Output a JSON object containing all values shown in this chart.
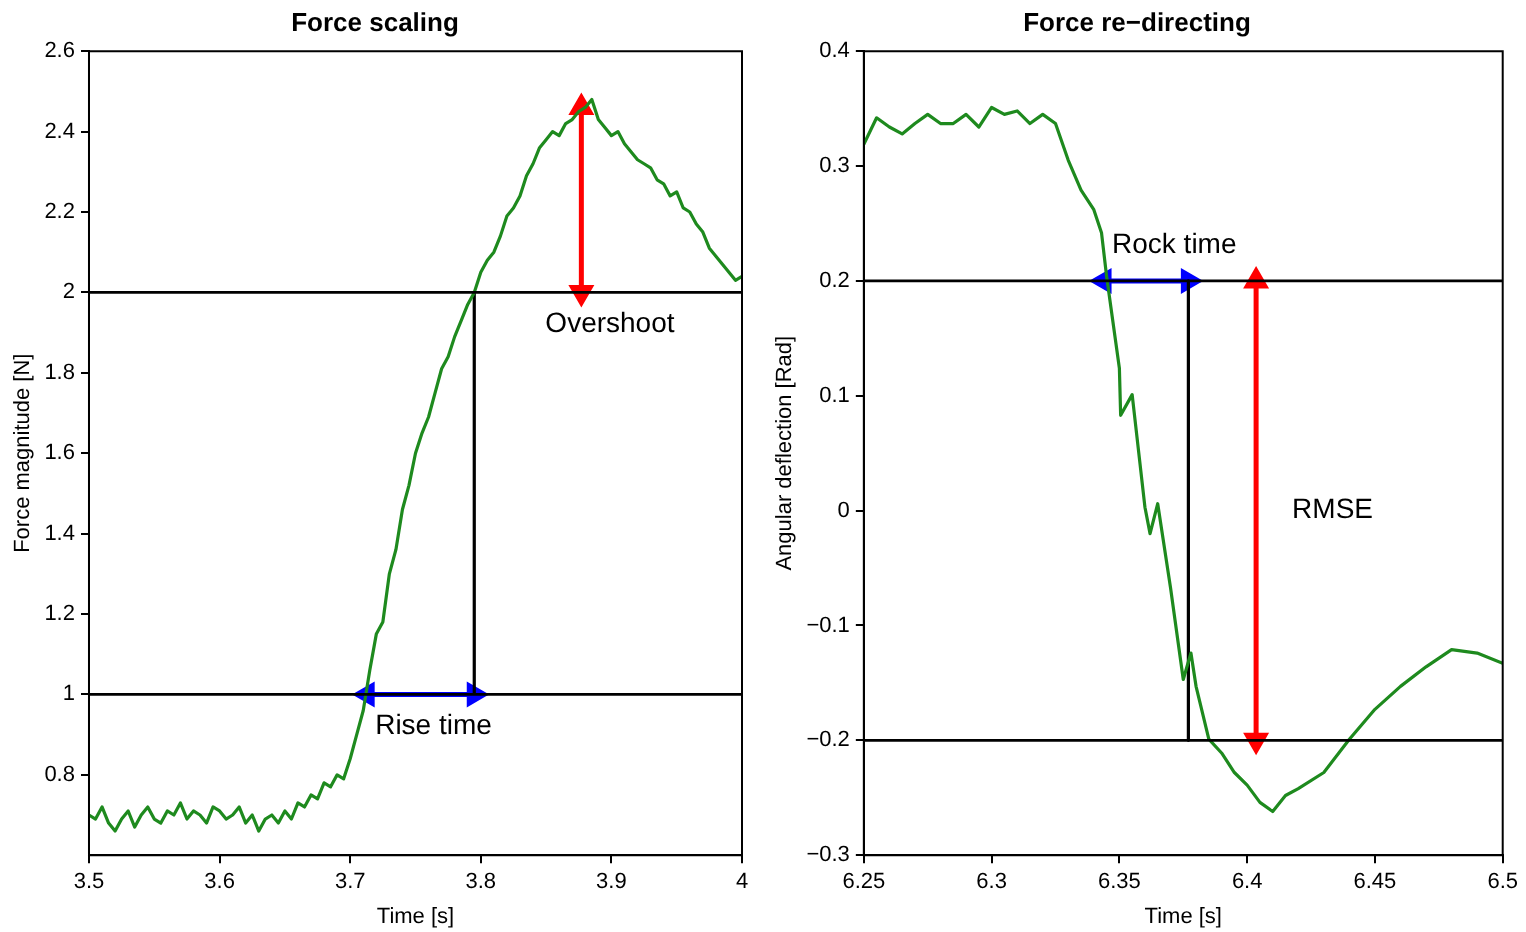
{
  "chart_data": [
    {
      "type": "line",
      "title": "Force scaling",
      "xlabel": "Time [s]",
      "ylabel": "Force magnitude [N]",
      "xlim": [
        3.5,
        4
      ],
      "xticks": [
        3.5,
        3.6,
        3.7,
        3.8,
        3.9,
        4
      ],
      "ylim": [
        0.6,
        2.6
      ],
      "yticks": [
        0.8,
        1,
        1.2,
        1.4,
        1.6,
        1.8,
        2,
        2.2,
        2.4,
        2.6
      ],
      "grid": false,
      "legend": false,
      "marker": "none",
      "ref_lines": [
        {
          "axis": "y",
          "value": 1,
          "color": "#000000"
        },
        {
          "axis": "y",
          "value": 2,
          "color": "#000000"
        }
      ],
      "annotations": [
        "Rise time",
        "Overshoot"
      ],
      "series": [
        {
          "color": "#1e8a1e",
          "x": [
            3.5,
            3.505,
            3.51,
            3.515,
            3.52,
            3.525,
            3.53,
            3.535,
            3.54,
            3.545,
            3.55,
            3.555,
            3.56,
            3.565,
            3.57,
            3.575,
            3.58,
            3.585,
            3.59,
            3.595,
            3.6,
            3.605,
            3.61,
            3.615,
            3.62,
            3.625,
            3.63,
            3.635,
            3.64,
            3.645,
            3.65,
            3.655,
            3.66,
            3.665,
            3.67,
            3.675,
            3.68,
            3.685,
            3.69,
            3.695,
            3.7,
            3.705,
            3.71,
            3.715,
            3.72,
            3.725,
            3.73,
            3.735,
            3.74,
            3.745,
            3.75,
            3.755,
            3.76,
            3.765,
            3.77,
            3.775,
            3.78,
            3.785,
            3.79,
            3.795,
            3.8,
            3.805,
            3.81,
            3.815,
            3.82,
            3.825,
            3.83,
            3.835,
            3.84,
            3.845,
            3.85,
            3.855,
            3.86,
            3.865,
            3.87,
            3.875,
            3.88,
            3.885,
            3.89,
            3.895,
            3.9,
            3.905,
            3.91,
            3.915,
            3.92,
            3.925,
            3.93,
            3.935,
            3.94,
            3.945,
            3.95,
            3.955,
            3.96,
            3.965,
            3.97,
            3.975,
            3.98,
            3.985,
            3.99,
            3.995,
            4
          ],
          "values": [
            0.7,
            0.69,
            0.72,
            0.68,
            0.66,
            0.69,
            0.71,
            0.67,
            0.7,
            0.72,
            0.69,
            0.68,
            0.71,
            0.7,
            0.73,
            0.69,
            0.71,
            0.7,
            0.68,
            0.72,
            0.71,
            0.69,
            0.7,
            0.72,
            0.68,
            0.7,
            0.66,
            0.69,
            0.7,
            0.68,
            0.71,
            0.69,
            0.73,
            0.72,
            0.75,
            0.74,
            0.78,
            0.77,
            0.8,
            0.79,
            0.84,
            0.9,
            0.96,
            1.06,
            1.15,
            1.18,
            1.3,
            1.36,
            1.46,
            1.52,
            1.6,
            1.65,
            1.69,
            1.75,
            1.81,
            1.84,
            1.89,
            1.93,
            1.97,
            2.0,
            2.05,
            2.08,
            2.1,
            2.14,
            2.19,
            2.21,
            2.24,
            2.29,
            2.32,
            2.36,
            2.38,
            2.4,
            2.39,
            2.42,
            2.43,
            2.45,
            2.46,
            2.48,
            2.43,
            2.41,
            2.39,
            2.4,
            2.37,
            2.35,
            2.33,
            2.32,
            2.31,
            2.28,
            2.27,
            2.24,
            2.25,
            2.21,
            2.2,
            2.17,
            2.15,
            2.11,
            2.09,
            2.07,
            2.05,
            2.03,
            2.04
          ]
        },
        {
          "color": "#000000",
          "x": [
            3.795,
            3.795
          ],
          "values": [
            1,
            2
          ]
        },
        {
          "color": "#0000ff",
          "marker": "triangle",
          "x": [
            3.713,
            3.795
          ],
          "values": [
            1,
            1
          ]
        },
        {
          "color": "#ff0000",
          "marker": "triangle",
          "x": [
            3.877,
            3.877
          ],
          "values": [
            2,
            2.46
          ]
        }
      ]
    },
    {
      "type": "line",
      "title": "Force re−directing",
      "xlabel": "Time [s]",
      "ylabel": "Angular deflection [Rad]",
      "xlim": [
        6.25,
        6.5
      ],
      "xticks": [
        6.25,
        6.3,
        6.35,
        6.4,
        6.45,
        6.5
      ],
      "ylim": [
        -0.3,
        0.4
      ],
      "yticks": [
        -0.3,
        -0.2,
        -0.1,
        0,
        0.1,
        0.2,
        0.3,
        0.4
      ],
      "grid": false,
      "legend": false,
      "marker": "none",
      "ref_lines": [
        {
          "axis": "y",
          "value": 0.2,
          "color": "#000000"
        },
        {
          "axis": "y",
          "value": -0.2,
          "color": "#000000"
        }
      ],
      "annotations": [
        "Rock time",
        "RMSE"
      ],
      "series": [
        {
          "color": "#1e8a1e",
          "x": [
            6.25,
            6.255,
            6.26,
            6.265,
            6.27,
            6.275,
            6.28,
            6.285,
            6.29,
            6.295,
            6.3,
            6.305,
            6.31,
            6.315,
            6.32,
            6.325,
            6.33,
            6.335,
            6.34,
            6.343,
            6.345,
            6.35,
            6.3505,
            6.355,
            6.36,
            6.362,
            6.365,
            6.37,
            6.375,
            6.378,
            6.38,
            6.385,
            6.39,
            6.395,
            6.4,
            6.405,
            6.41,
            6.415,
            6.42,
            6.43,
            6.44,
            6.45,
            6.46,
            6.47,
            6.48,
            6.49,
            6.5
          ],
          "values": [
            0.319,
            0.342,
            0.334,
            0.328,
            0.337,
            0.345,
            0.337,
            0.337,
            0.345,
            0.334,
            0.351,
            0.345,
            0.348,
            0.337,
            0.345,
            0.337,
            0.305,
            0.279,
            0.262,
            0.242,
            0.204,
            0.124,
            0.083,
            0.101,
            0.003,
            -0.02,
            0.006,
            -0.067,
            -0.147,
            -0.124,
            -0.153,
            -0.199,
            -0.211,
            -0.228,
            -0.239,
            -0.254,
            -0.262,
            -0.248,
            -0.242,
            -0.228,
            -0.199,
            -0.173,
            -0.153,
            -0.136,
            -0.121,
            -0.124,
            -0.133
          ]
        },
        {
          "color": "#000000",
          "x": [
            6.377,
            6.377
          ],
          "values": [
            0.2,
            -0.2
          ]
        },
        {
          "color": "#0000ff",
          "marker": "triangle",
          "x": [
            6.344,
            6.377
          ],
          "values": [
            0.2,
            0.2
          ]
        },
        {
          "color": "#ff0000",
          "marker": "triangle",
          "x": [
            6.4035,
            6.4035
          ],
          "values": [
            0.2,
            -0.2
          ]
        }
      ]
    }
  ]
}
